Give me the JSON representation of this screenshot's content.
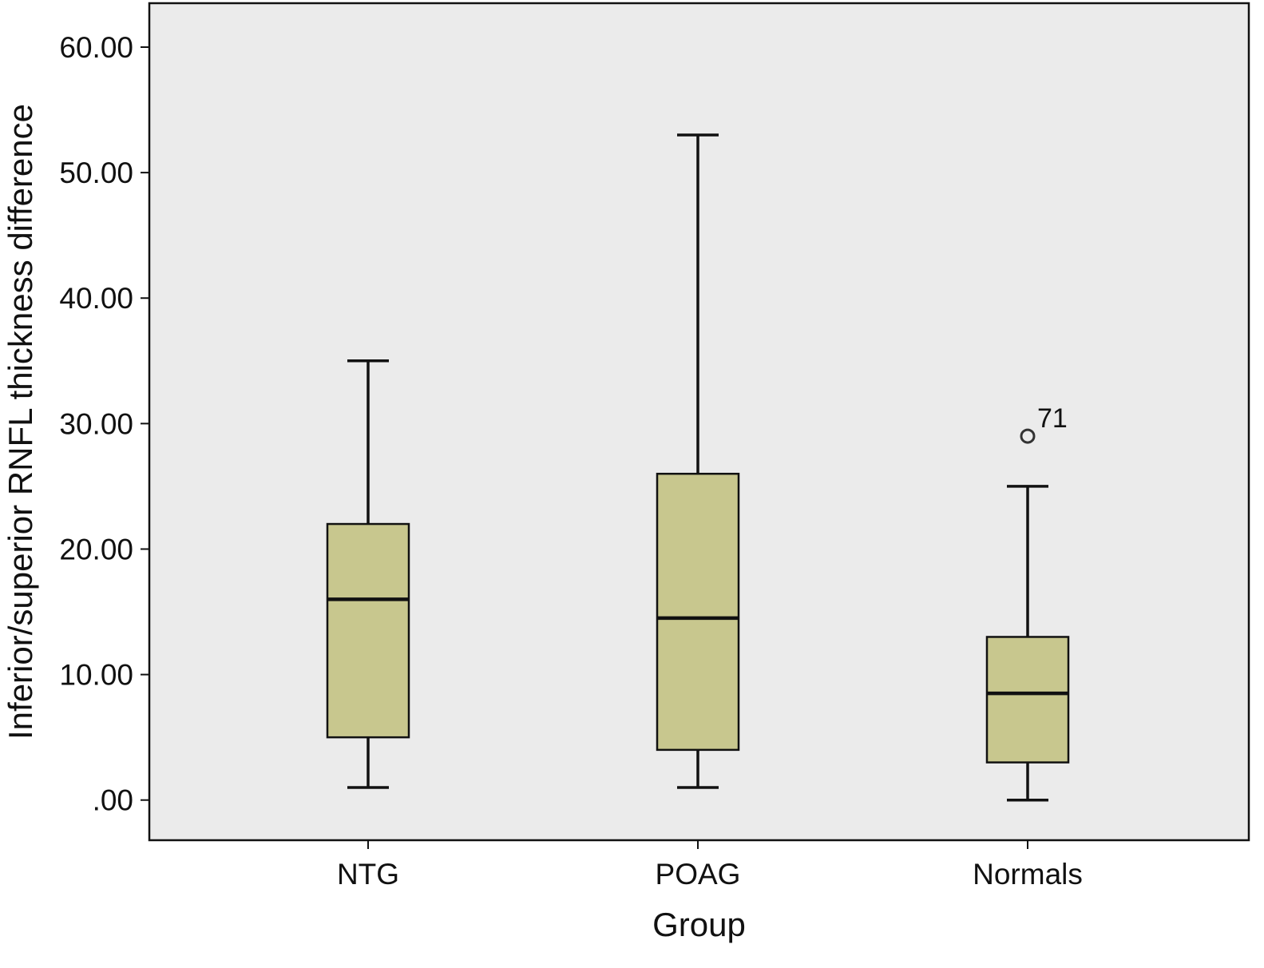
{
  "chart_data": {
    "type": "boxplot",
    "title": "",
    "xlabel": "Group",
    "ylabel": "Inferior/superior RNFL thickness difference",
    "ylim": [
      -3.2,
      63.5
    ],
    "yticks": [
      0,
      10,
      20,
      30,
      40,
      50,
      60
    ],
    "ytick_labels": [
      ".00",
      "10.00",
      "20.00",
      "30.00",
      "40.00",
      "50.00",
      "60.00"
    ],
    "categories": [
      "NTG",
      "POAG",
      "Normals"
    ],
    "boxes": [
      {
        "category": "NTG",
        "whisker_low": 1,
        "q1": 5,
        "median": 16,
        "q3": 22,
        "whisker_high": 35,
        "outliers": []
      },
      {
        "category": "POAG",
        "whisker_low": 1,
        "q1": 4,
        "median": 14.5,
        "q3": 26,
        "whisker_high": 53,
        "outliers": []
      },
      {
        "category": "Normals",
        "whisker_low": 0,
        "q1": 3,
        "median": 8.5,
        "q3": 13,
        "whisker_high": 25,
        "outliers": [
          {
            "value": 29,
            "label": "71"
          }
        ]
      }
    ],
    "grid": false,
    "legend": "none",
    "colors": {
      "plot_background": "#ebebeb",
      "box_fill": "#c8c78e",
      "stroke": "#111111"
    }
  }
}
